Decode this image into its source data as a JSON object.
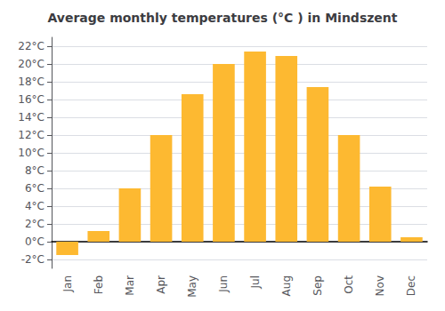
{
  "chart_data": {
    "type": "bar",
    "title": "Average monthly temperatures (°C ) in Mindszent",
    "categories": [
      "Jan",
      "Feb",
      "Mar",
      "Apr",
      "May",
      "Jun",
      "Jul",
      "Aug",
      "Sep",
      "Oct",
      "Nov",
      "Dec"
    ],
    "values": [
      -1.5,
      1.2,
      6.0,
      12.0,
      16.6,
      20.0,
      21.4,
      20.9,
      17.4,
      12.0,
      6.2,
      0.5
    ],
    "color": "#FDB931",
    "ylim": [
      -3,
      23
    ],
    "yticks": [
      {
        "value": -2,
        "label": "-2°C"
      },
      {
        "value": 0,
        "label": "0°C"
      },
      {
        "value": 2,
        "label": "2°C"
      },
      {
        "value": 4,
        "label": "4°C"
      },
      {
        "value": 6,
        "label": "6°C"
      },
      {
        "value": 8,
        "label": "8°C"
      },
      {
        "value": 10,
        "label": "10°C"
      },
      {
        "value": 12,
        "label": "12°C"
      },
      {
        "value": 14,
        "label": "14°C"
      },
      {
        "value": 16,
        "label": "16°C"
      },
      {
        "value": 18,
        "label": "18°C"
      },
      {
        "value": 20,
        "label": "20°C"
      },
      {
        "value": 22,
        "label": "22°C"
      }
    ],
    "grid": true
  }
}
